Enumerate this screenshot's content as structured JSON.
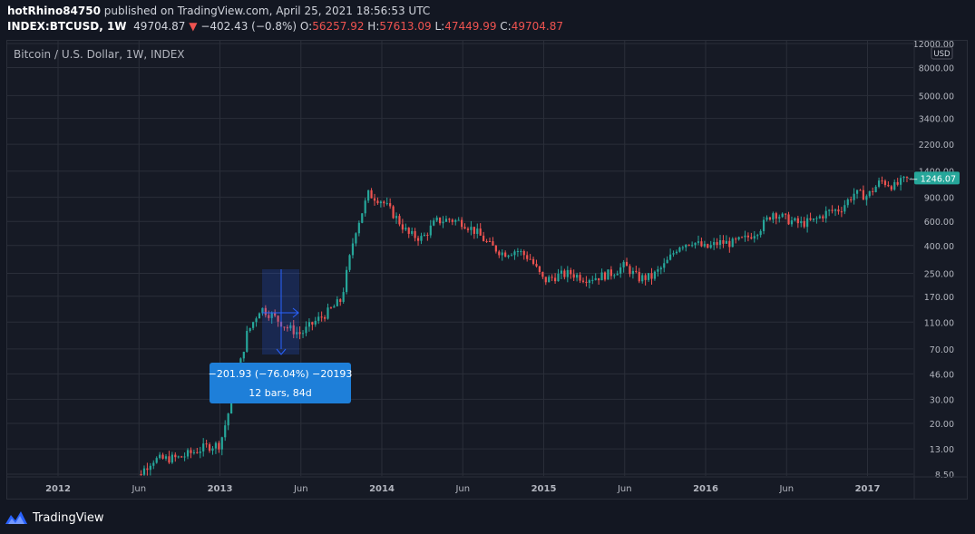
{
  "header": {
    "user": "hotRhino84750",
    "published_text": "published on TradingView.com, April 25, 2021 18:56:53 UTC",
    "symbol": "INDEX:BTCUSD, 1W",
    "last": "49704.87",
    "change_arrow": "▼",
    "change": "−402.43 (−0.8%)",
    "o_label": "O:",
    "o_value": "56257.92",
    "h_label": "H:",
    "h_value": "57613.09",
    "l_label": "L:",
    "l_value": "47449.99",
    "c_label": "C:",
    "c_value": "49704.87"
  },
  "legend_title": "Bitcoin / U.S. Dollar, 1W, INDEX",
  "footer": {
    "brand": "TradingView",
    "logo_icon": "tradingview-logo-icon"
  },
  "colors": {
    "up": "#26a69a",
    "down": "#ef5350",
    "background": "#131722",
    "grid": "#2a2e39",
    "measure": "#2962ff",
    "last_price": "#26a69a"
  },
  "chart_data": {
    "type": "candlestick",
    "y_scale": "log",
    "currency_label": "USD",
    "ylim": [
      8,
      13000
    ],
    "x_tick_labels": [
      "2012",
      "Jun",
      "2013",
      "Jun",
      "2014",
      "Jun",
      "2015",
      "Jun",
      "2016",
      "Jun",
      "2017"
    ],
    "y_tick_labels": [
      "12000.00",
      "8000.00",
      "5000.00",
      "3400.00",
      "2200.00",
      "1400.00",
      "900.00",
      "600.00",
      "400.00",
      "250.00",
      "170.00",
      "110.00",
      "70.00",
      "46.00",
      "30.00",
      "20.00",
      "13.00",
      "8.50"
    ],
    "y_ticks": [
      12000,
      8000,
      5000,
      3400,
      2200,
      1400,
      900,
      600,
      400,
      250,
      170,
      110,
      70,
      46,
      30,
      20,
      13,
      8.5
    ],
    "last_price_label": "1246.07",
    "last_price": 1246.07,
    "series": [
      {
        "points": [
          [
            "2012-06",
            6.6
          ],
          [
            "2012-08",
            10.8
          ],
          [
            "2012-10",
            11.2
          ],
          [
            "2012-12",
            13.5
          ],
          [
            "2013-01",
            14
          ],
          [
            "2013-02",
            33
          ],
          [
            "2013-03",
            90
          ],
          [
            "2013-04",
            140
          ],
          [
            "2013-05",
            120
          ],
          [
            "2013-06",
            100
          ],
          [
            "2013-07",
            90
          ],
          [
            "2013-08",
            110
          ],
          [
            "2013-09",
            130
          ],
          [
            "2013-10",
            160
          ],
          [
            "2013-11",
            500
          ],
          [
            "2013-12",
            950
          ],
          [
            "2014-01",
            850
          ],
          [
            "2014-02",
            650
          ],
          [
            "2014-03",
            480
          ],
          [
            "2014-04",
            450
          ],
          [
            "2014-05",
            600
          ],
          [
            "2014-06",
            620
          ],
          [
            "2014-07",
            590
          ],
          [
            "2014-08",
            500
          ],
          [
            "2014-09",
            400
          ],
          [
            "2014-10",
            350
          ],
          [
            "2014-11",
            370
          ],
          [
            "2014-12",
            320
          ],
          [
            "2015-01",
            220
          ],
          [
            "2015-02",
            240
          ],
          [
            "2015-03",
            250
          ],
          [
            "2015-04",
            230
          ],
          [
            "2015-05",
            235
          ],
          [
            "2015-06",
            250
          ],
          [
            "2015-07",
            285
          ],
          [
            "2015-08",
            230
          ],
          [
            "2015-09",
            235
          ],
          [
            "2015-10",
            290
          ],
          [
            "2015-11",
            400
          ],
          [
            "2015-12",
            430
          ],
          [
            "2016-01",
            380
          ],
          [
            "2016-02",
            420
          ],
          [
            "2016-03",
            415
          ],
          [
            "2016-04",
            450
          ],
          [
            "2016-05",
            530
          ],
          [
            "2016-06",
            700
          ],
          [
            "2016-07",
            620
          ],
          [
            "2016-08",
            575
          ],
          [
            "2016-09",
            605
          ],
          [
            "2016-10",
            700
          ],
          [
            "2016-11",
            740
          ],
          [
            "2016-12",
            960
          ],
          [
            "2017-01",
            920
          ],
          [
            "2017-02",
            1190
          ],
          [
            "2017-03",
            1080
          ],
          [
            "2017-04",
            1246.07
          ]
        ]
      }
    ],
    "annotation": {
      "tool": "price range",
      "text_line1": "−201.93 (−76.04%) −20193",
      "text_line2": "12 bars, 84d"
    }
  }
}
